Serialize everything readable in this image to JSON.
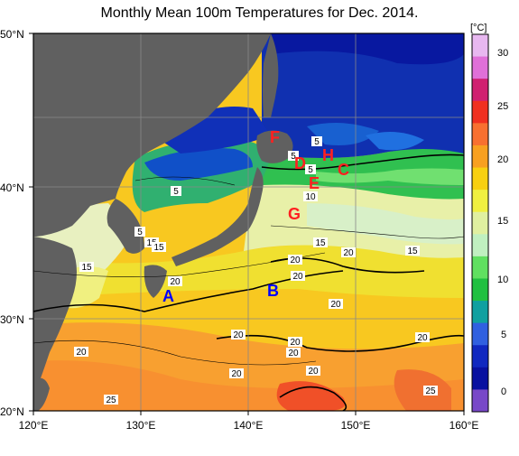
{
  "title": "Monthly Mean 100m Temperatures for Dec. 2014.",
  "lat_labels": [
    "50°N",
    "40°N",
    "30°N",
    "20°N"
  ],
  "lon_labels": [
    "120°E",
    "130°E",
    "140°E",
    "150°E",
    "160°E"
  ],
  "colorbar": {
    "unit": "[°C]",
    "ticks": [
      "30",
      "25",
      "20",
      "15",
      "10",
      "5",
      "0"
    ],
    "colors": [
      "#e8b8f0",
      "#e070d8",
      "#d02070",
      "#f03020",
      "#f87030",
      "#f8a020",
      "#f8d010",
      "#f0f040",
      "#e0f0a0",
      "#c0f0c0",
      "#60e060",
      "#20c040",
      "#10a0a0",
      "#3060e0",
      "#1028c0",
      "#0810a0",
      "#7848c8"
    ]
  },
  "point_labels": [
    {
      "text": "A",
      "color": "#0000ff"
    },
    {
      "text": "B",
      "color": "#0000ff"
    },
    {
      "text": "C",
      "color": "#ff0000"
    },
    {
      "text": "D",
      "color": "#ff0000"
    },
    {
      "text": "E",
      "color": "#ff0000"
    },
    {
      "text": "F",
      "color": "#ff0000"
    },
    {
      "text": "G",
      "color": "#ff0000"
    },
    {
      "text": "H",
      "color": "#ff0000"
    }
  ],
  "contour_labels": [
    "5",
    "5",
    "5",
    "5",
    "5",
    "10",
    "15",
    "15",
    "15",
    "15",
    "15",
    "20",
    "20",
    "20",
    "20",
    "20",
    "20",
    "20",
    "20",
    "20",
    "20",
    "20",
    "20",
    "25",
    "25"
  ]
}
